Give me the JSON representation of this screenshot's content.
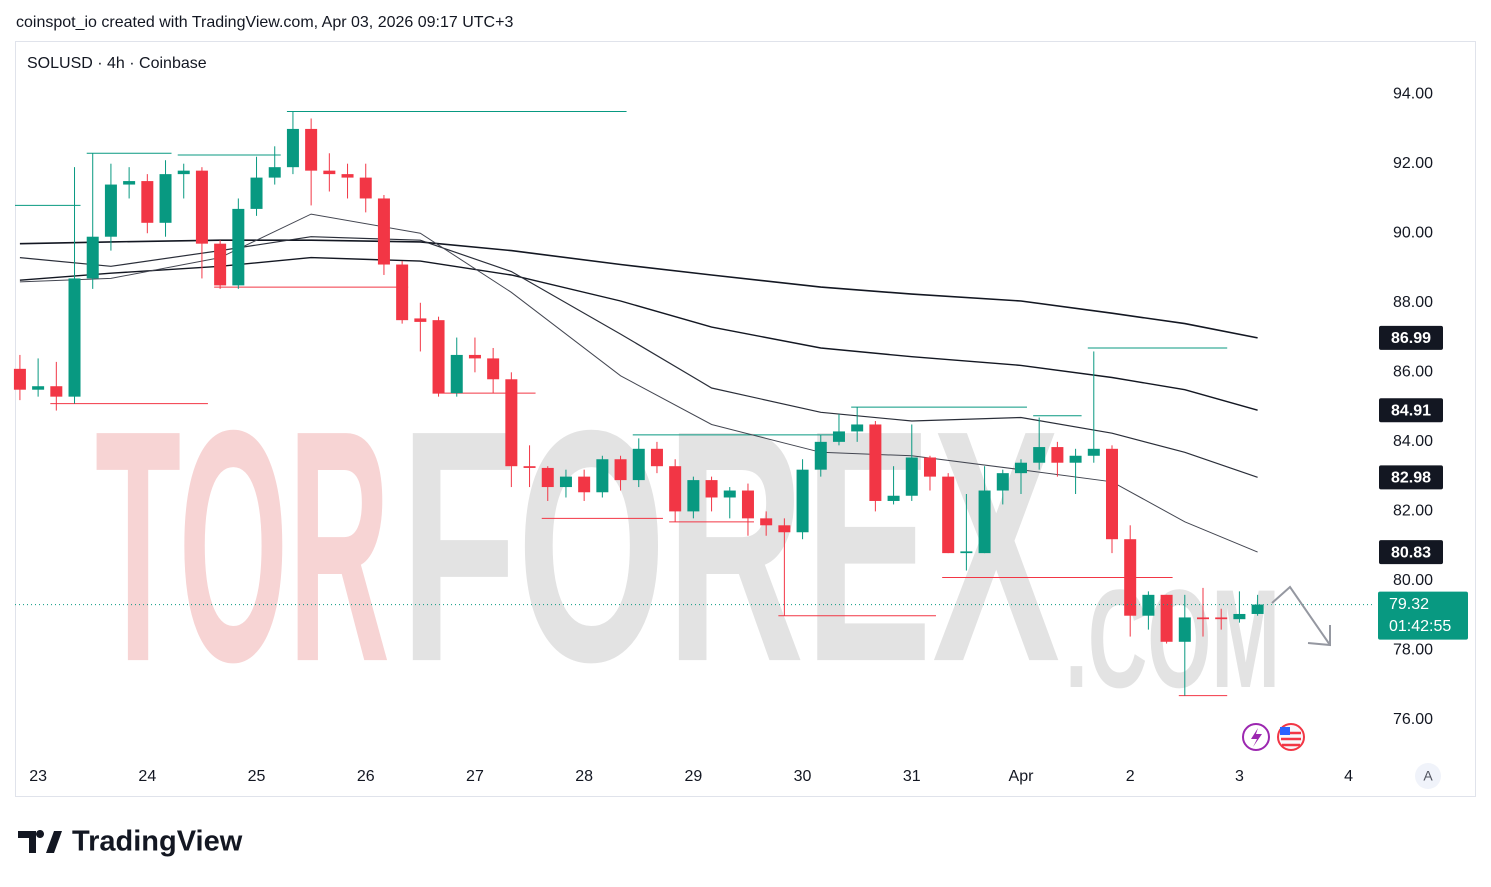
{
  "chart_data": {
    "type": "candlestick",
    "header": "coinspot_io created with TradingView.com, Apr 03, 2026 09:17 UTC+3",
    "title": "SOLUSD · 4h · Coinbase",
    "brand": "TradingView",
    "scale_button": "A",
    "watermark": [
      "TOR",
      "FOREX",
      ".COM"
    ],
    "countdown": "01:42:55",
    "colors": {
      "up": "#089981",
      "down": "#f23645"
    },
    "ylim": [
      74.85,
      95.5
    ],
    "yticks": [
      {
        "value": 76,
        "label": "76.00"
      },
      {
        "value": 78,
        "label": "78.00"
      },
      {
        "value": 80,
        "label": "80.00"
      },
      {
        "value": 82,
        "label": "82.00"
      },
      {
        "value": 84,
        "label": "84.00"
      },
      {
        "value": 86,
        "label": "86.00"
      },
      {
        "value": 88,
        "label": "88.00"
      },
      {
        "value": 90,
        "label": "90.00"
      },
      {
        "value": 92,
        "label": "92.00"
      },
      {
        "value": 94,
        "label": "94.00"
      }
    ],
    "xlim": [
      -0.27,
      74.45
    ],
    "xticks": [
      {
        "value": 1,
        "label": "23"
      },
      {
        "value": 7,
        "label": "24"
      },
      {
        "value": 13,
        "label": "25"
      },
      {
        "value": 19,
        "label": "26"
      },
      {
        "value": 25,
        "label": "27"
      },
      {
        "value": 31,
        "label": "28"
      },
      {
        "value": 37,
        "label": "29"
      },
      {
        "value": 43,
        "label": "30"
      },
      {
        "value": 49,
        "label": "31"
      },
      {
        "value": 55,
        "label": "Apr"
      },
      {
        "value": 61,
        "label": "2"
      },
      {
        "value": 67,
        "label": "3"
      },
      {
        "value": 73,
        "label": "4"
      }
    ],
    "candles": {
      "open": [
        86.1,
        85.5,
        85.6,
        85.3,
        88.7,
        89.9,
        91.4,
        91.5,
        90.3,
        91.7,
        91.8,
        89.7,
        88.5,
        90.7,
        91.6,
        91.9,
        93.0,
        91.8,
        91.7,
        91.6,
        91.0,
        89.1,
        87.55,
        87.5,
        85.4,
        86.5,
        86.4,
        85.8,
        83.3,
        83.25,
        82.7,
        83.0,
        82.55,
        83.5,
        82.9,
        83.8,
        83.3,
        82.0,
        82.9,
        82.4,
        82.6,
        81.8,
        81.6,
        81.4,
        83.2,
        84.0,
        84.3,
        84.5,
        82.3,
        82.45,
        83.55,
        83.0,
        80.8,
        80.8,
        82.6,
        83.1,
        83.4,
        83.85,
        83.4,
        83.6,
        83.8,
        81.2,
        79.0,
        79.6,
        78.25,
        78.95,
        78.95,
        78.9,
        79.05
      ],
      "high": [
        86.5,
        86.4,
        86.3,
        91.9,
        92.3,
        92.0,
        91.9,
        91.7,
        92.1,
        92.0,
        91.9,
        89.8,
        91.0,
        92.2,
        92.5,
        93.5,
        93.3,
        92.3,
        92.0,
        92.0,
        91.1,
        89.2,
        88.0,
        87.6,
        87.0,
        87.0,
        86.7,
        86.0,
        83.9,
        83.3,
        83.2,
        83.2,
        83.6,
        83.6,
        84.1,
        84.0,
        83.5,
        83.0,
        83.0,
        82.7,
        82.8,
        82.0,
        81.8,
        83.5,
        84.2,
        84.8,
        85.0,
        84.6,
        83.3,
        84.5,
        83.6,
        83.1,
        82.5,
        83.3,
        83.2,
        83.5,
        84.7,
        84.0,
        83.8,
        86.6,
        83.9,
        81.6,
        79.7,
        79.6,
        79.6,
        79.8,
        79.2,
        79.7,
        79.6
      ],
      "low": [
        85.2,
        85.3,
        84.9,
        85.1,
        88.4,
        89.5,
        91.0,
        90.0,
        89.9,
        91.0,
        88.7,
        88.4,
        88.4,
        90.5,
        91.4,
        91.7,
        90.8,
        91.2,
        91.0,
        90.6,
        88.8,
        87.4,
        86.6,
        85.3,
        85.3,
        86.0,
        85.4,
        82.7,
        82.7,
        82.3,
        82.4,
        82.3,
        82.4,
        82.6,
        82.7,
        83.1,
        81.7,
        81.8,
        82.0,
        81.8,
        81.3,
        81.3,
        79.0,
        81.2,
        83.0,
        83.9,
        84.0,
        82.0,
        82.2,
        82.3,
        82.6,
        80.8,
        80.3,
        80.8,
        82.2,
        82.5,
        83.2,
        83.0,
        82.5,
        83.4,
        80.8,
        78.4,
        78.6,
        78.2,
        76.7,
        78.4,
        78.6,
        78.8,
        79.0
      ],
      "close": [
        85.5,
        85.6,
        85.3,
        88.7,
        89.9,
        91.4,
        91.5,
        90.3,
        91.7,
        91.8,
        89.7,
        88.5,
        90.7,
        91.6,
        91.9,
        93.0,
        91.8,
        91.7,
        91.6,
        91.0,
        89.1,
        87.5,
        87.45,
        85.4,
        86.5,
        86.4,
        85.8,
        83.3,
        83.25,
        82.7,
        83.0,
        82.55,
        83.5,
        82.9,
        83.8,
        83.3,
        82.0,
        82.9,
        82.4,
        82.6,
        81.8,
        81.6,
        81.4,
        83.2,
        84.0,
        84.3,
        84.5,
        82.3,
        82.45,
        83.55,
        83.0,
        80.8,
        80.85,
        82.6,
        83.1,
        83.4,
        83.85,
        83.4,
        83.6,
        83.8,
        81.2,
        79.0,
        79.6,
        78.25,
        78.95,
        78.9,
        78.9,
        79.05,
        79.32
      ]
    },
    "ma_x": [
      0,
      5,
      11,
      16,
      22,
      27,
      33,
      38,
      44,
      49,
      55,
      60,
      64,
      68
    ],
    "series": [
      {
        "color": "#131722",
        "width": 1.6,
        "values": [
          89.7,
          89.75,
          89.8,
          89.8,
          89.75,
          89.5,
          89.1,
          88.8,
          88.45,
          88.25,
          88.05,
          87.7,
          87.4,
          86.99
        ]
      },
      {
        "color": "#131722",
        "width": 1.4,
        "values": [
          88.65,
          88.85,
          89.05,
          89.3,
          89.2,
          88.8,
          88.05,
          87.3,
          86.7,
          86.45,
          86.2,
          85.85,
          85.5,
          84.91
        ]
      },
      {
        "color": "#2a2e39",
        "width": 1.2,
        "values": [
          89.3,
          89.05,
          89.5,
          89.9,
          89.8,
          88.9,
          87.1,
          85.55,
          84.85,
          84.6,
          84.7,
          84.25,
          83.7,
          82.98
        ]
      },
      {
        "color": "#434651",
        "width": 1,
        "values": [
          88.6,
          88.7,
          89.3,
          90.55,
          90.0,
          88.3,
          85.9,
          84.5,
          83.7,
          83.6,
          83.2,
          82.85,
          81.7,
          80.83
        ]
      }
    ],
    "levels": [
      {
        "value": 90.8,
        "from": 0,
        "to": 3,
        "color": "#089981"
      },
      {
        "value": 92.3,
        "from": 4,
        "to": 8,
        "color": "#089981"
      },
      {
        "value": 92.25,
        "from": 9,
        "to": 14,
        "color": "#089981"
      },
      {
        "value": 93.5,
        "from": 15,
        "to": 33,
        "color": "#089981"
      },
      {
        "value": 84.2,
        "from": 34,
        "to": 45,
        "color": "#089981"
      },
      {
        "value": 85.0,
        "from": 46,
        "to": 55,
        "color": "#089981"
      },
      {
        "value": 84.75,
        "from": 56,
        "to": 58,
        "color": "#089981"
      },
      {
        "value": 86.7,
        "from": 59,
        "to": 66,
        "color": "#089981"
      },
      {
        "value": 85.1,
        "from": 2,
        "to": 10,
        "color": "#f23645"
      },
      {
        "value": 88.45,
        "from": 11,
        "to": 21,
        "color": "#f23645"
      },
      {
        "value": 85.4,
        "from": 23,
        "to": 28,
        "color": "#f23645"
      },
      {
        "value": 81.8,
        "from": 29,
        "to": 35,
        "color": "#f23645"
      },
      {
        "value": 81.7,
        "from": 36,
        "to": 40,
        "color": "#f23645"
      },
      {
        "value": 79.0,
        "from": 42,
        "to": 50,
        "color": "#f23645"
      },
      {
        "value": 80.1,
        "from": 51,
        "to": 63,
        "color": "#f23645"
      },
      {
        "value": 76.7,
        "from": 64,
        "to": 66,
        "color": "#f23645"
      }
    ]
  }
}
